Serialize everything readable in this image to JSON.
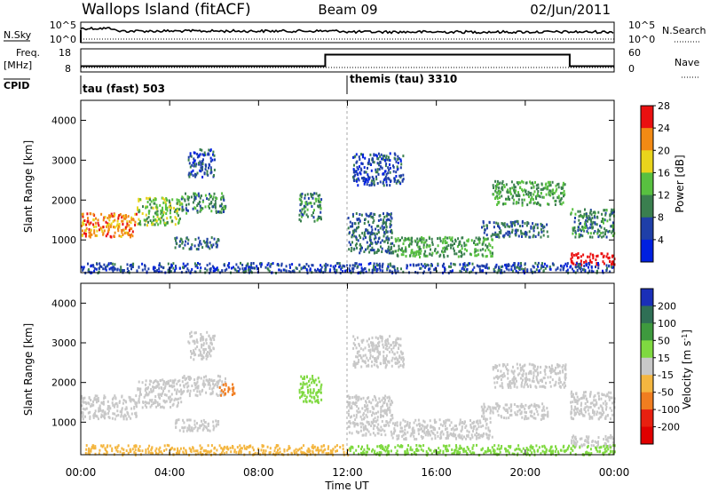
{
  "header": {
    "station": "Wallops Island (fitACF)",
    "beam": "Beam 09",
    "date": "02/Jun/2011"
  },
  "status_panels": {
    "nsky_label": "N.Sky",
    "nsky_ticks": [
      "10^5",
      "10^0"
    ],
    "nsearch_label": "N.Search",
    "nsearch_ticks": [
      "10^5",
      "10^0"
    ],
    "freq_label": "Freq.",
    "freq_unit": "[MHz]",
    "freq_ticks": [
      "18",
      "8"
    ],
    "nave_label": "Nave",
    "nave_ticks": [
      "60",
      "0"
    ],
    "cpid_label": "CPID",
    "cpid_modes": [
      {
        "name": "tau (fast) 503",
        "start_hour": 0
      },
      {
        "name": "themis (tau) 3310",
        "start_hour": 12
      }
    ],
    "freq_steps": [
      {
        "from_hour": 0,
        "to_hour": 11,
        "freq_mhz": 10.5
      },
      {
        "from_hour": 11,
        "to_hour": 22,
        "freq_mhz": 15.5
      },
      {
        "from_hour": 22,
        "to_hour": 24,
        "freq_mhz": 10.5
      }
    ]
  },
  "x_axis": {
    "label": "Time UT",
    "ticks": [
      "00:00",
      "04:00",
      "08:00",
      "12:00",
      "16:00",
      "20:00",
      "00:00"
    ]
  },
  "chart_data": [
    {
      "type": "heatmap",
      "name": "power",
      "ylabel": "Slant Range [km]",
      "xlim_hours": [
        0,
        24
      ],
      "ylim_km": [
        180,
        4500
      ],
      "yticks": [
        "1000",
        "2000",
        "3000",
        "4000"
      ],
      "colorbar": {
        "label": "Power [dB]",
        "ticks": [
          "4",
          "8",
          "12",
          "16",
          "20",
          "24",
          "28"
        ],
        "colors": [
          "#0020e0",
          "#1f3fa8",
          "#3a7f4f",
          "#58c040",
          "#e9d41c",
          "#f28a14",
          "#ea1010"
        ]
      },
      "echo_regions": [
        {
          "t0": 0.0,
          "t1": 2.5,
          "r0": 1100,
          "r1": 1700,
          "level": 22
        },
        {
          "t0": 2.5,
          "t1": 4.5,
          "r0": 1400,
          "r1": 2100,
          "level": 14
        },
        {
          "t0": 4.5,
          "t1": 6.5,
          "r0": 1700,
          "r1": 2200,
          "level": 10
        },
        {
          "t0": 4.2,
          "t1": 6.2,
          "r0": 800,
          "r1": 1100,
          "level": 8
        },
        {
          "t0": 4.8,
          "t1": 6.0,
          "r0": 2600,
          "r1": 3300,
          "level": 6
        },
        {
          "t0": 9.8,
          "t1": 10.8,
          "r0": 1500,
          "r1": 2200,
          "level": 10
        },
        {
          "t0": 12.0,
          "t1": 14.0,
          "r0": 700,
          "r1": 1700,
          "level": 8
        },
        {
          "t0": 14.0,
          "t1": 18.5,
          "r0": 600,
          "r1": 1100,
          "level": 12
        },
        {
          "t0": 12.2,
          "t1": 14.5,
          "r0": 2400,
          "r1": 3200,
          "level": 6
        },
        {
          "t0": 18.5,
          "t1": 21.8,
          "r0": 1900,
          "r1": 2500,
          "level": 12
        },
        {
          "t0": 18.0,
          "t1": 21.0,
          "r0": 1100,
          "r1": 1500,
          "level": 8
        },
        {
          "t0": 22.0,
          "t1": 24.0,
          "r0": 1100,
          "r1": 1800,
          "level": 10
        },
        {
          "t0": 22.0,
          "t1": 24.0,
          "r0": 400,
          "r1": 700,
          "level": 30
        },
        {
          "t0": 0.0,
          "t1": 24.0,
          "r0": 200,
          "r1": 450,
          "level": 6
        }
      ]
    },
    {
      "type": "heatmap",
      "name": "velocity",
      "ylabel": "Slant Range [km]",
      "xlim_hours": [
        0,
        24
      ],
      "ylim_km": [
        180,
        4500
      ],
      "yticks": [
        "1000",
        "2000",
        "3000",
        "4000"
      ],
      "colorbar": {
        "label": "Velocity [m s^-1]",
        "ticks": [
          "200",
          "100",
          "50",
          "15",
          "-15",
          "-50",
          "-100",
          "-200"
        ],
        "colors": [
          "#1a2fb8",
          "#2f6f55",
          "#3e9a3e",
          "#7fd940",
          "#c8c8c8",
          "#f4b640",
          "#f07d20",
          "#e82010",
          "#e00000"
        ]
      },
      "echo_regions": [
        {
          "t0": 0.0,
          "t1": 2.5,
          "r0": 1100,
          "r1": 1700,
          "level": -5
        },
        {
          "t0": 2.5,
          "t1": 4.5,
          "r0": 1400,
          "r1": 2100,
          "level": 0
        },
        {
          "t0": 4.5,
          "t1": 6.5,
          "r0": 1700,
          "r1": 2200,
          "level": 5
        },
        {
          "t0": 6.2,
          "t1": 6.9,
          "r0": 1700,
          "r1": 2000,
          "level": -60
        },
        {
          "t0": 4.2,
          "t1": 6.2,
          "r0": 800,
          "r1": 1100,
          "level": 0
        },
        {
          "t0": 4.8,
          "t1": 6.0,
          "r0": 2600,
          "r1": 3300,
          "level": 0
        },
        {
          "t0": 9.8,
          "t1": 10.8,
          "r0": 1500,
          "r1": 2200,
          "level": 30
        },
        {
          "t0": 12.0,
          "t1": 14.0,
          "r0": 700,
          "r1": 1700,
          "level": 0
        },
        {
          "t0": 14.0,
          "t1": 18.5,
          "r0": 600,
          "r1": 1100,
          "level": 0
        },
        {
          "t0": 12.2,
          "t1": 14.5,
          "r0": 2400,
          "r1": 3200,
          "level": 0
        },
        {
          "t0": 18.5,
          "t1": 21.8,
          "r0": 1900,
          "r1": 2500,
          "level": 0
        },
        {
          "t0": 18.0,
          "t1": 21.0,
          "r0": 1100,
          "r1": 1500,
          "level": 0
        },
        {
          "t0": 22.0,
          "t1": 24.0,
          "r0": 1100,
          "r1": 1800,
          "level": 0
        },
        {
          "t0": 22.0,
          "t1": 24.0,
          "r0": 400,
          "r1": 700,
          "level": 0
        },
        {
          "t0": 0.0,
          "t1": 12.0,
          "r0": 200,
          "r1": 450,
          "level": -30
        },
        {
          "t0": 12.0,
          "t1": 24.0,
          "r0": 200,
          "r1": 450,
          "level": 25
        }
      ]
    }
  ]
}
